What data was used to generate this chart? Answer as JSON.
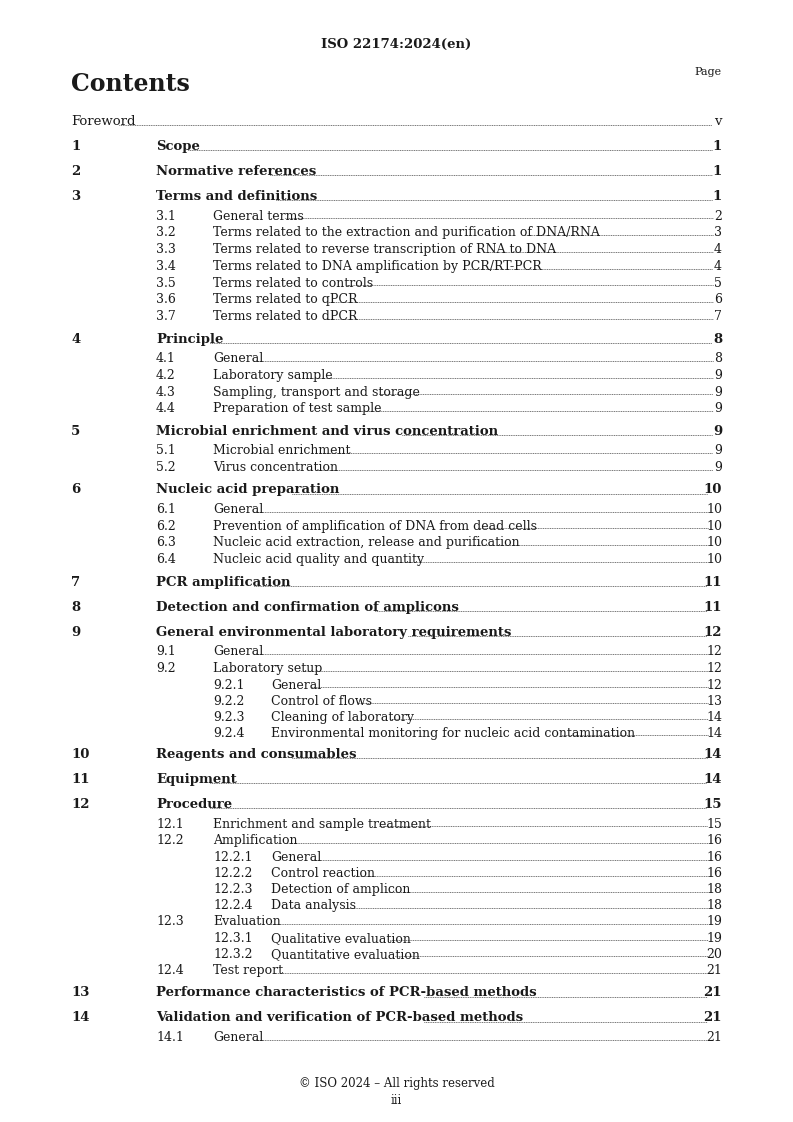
{
  "header": "ISO 22174:2024(en)",
  "title": "Contents",
  "page_label": "Page",
  "footer_line1": "© ISO 2024 – All rights reserved",
  "footer_line2": "iii",
  "background": "#ffffff",
  "text_color": "#1a1a1a",
  "entries": [
    {
      "level": 0,
      "num": "Foreword",
      "text": "",
      "page": "v",
      "bold": false
    },
    {
      "level": 1,
      "num": "1",
      "text": "Scope",
      "page": "1",
      "bold": true
    },
    {
      "level": 1,
      "num": "2",
      "text": "Normative references",
      "page": "1",
      "bold": true
    },
    {
      "level": 1,
      "num": "3",
      "text": "Terms and definitions",
      "page": "1",
      "bold": true
    },
    {
      "level": 2,
      "num": "3.1",
      "text": "General terms",
      "page": "2",
      "bold": false
    },
    {
      "level": 2,
      "num": "3.2",
      "text": "Terms related to the extraction and purification of DNA/RNA",
      "page": "3",
      "bold": false
    },
    {
      "level": 2,
      "num": "3.3",
      "text": "Terms related to reverse transcription of RNA to DNA",
      "page": "4",
      "bold": false
    },
    {
      "level": 2,
      "num": "3.4",
      "text": "Terms related to DNA amplification by PCR/RT-PCR",
      "page": "4",
      "bold": false
    },
    {
      "level": 2,
      "num": "3.5",
      "text": "Terms related to controls",
      "page": "5",
      "bold": false
    },
    {
      "level": 2,
      "num": "3.6",
      "text": "Terms related to qPCR",
      "page": "6",
      "bold": false
    },
    {
      "level": 2,
      "num": "3.7",
      "text": "Terms related to dPCR",
      "page": "7",
      "bold": false
    },
    {
      "level": 1,
      "num": "4",
      "text": "Principle",
      "page": "8",
      "bold": true
    },
    {
      "level": 2,
      "num": "4.1",
      "text": "General",
      "page": "8",
      "bold": false
    },
    {
      "level": 2,
      "num": "4.2",
      "text": "Laboratory sample",
      "page": "9",
      "bold": false
    },
    {
      "level": 2,
      "num": "4.3",
      "text": "Sampling, transport and storage",
      "page": "9",
      "bold": false
    },
    {
      "level": 2,
      "num": "4.4",
      "text": "Preparation of test sample",
      "page": "9",
      "bold": false
    },
    {
      "level": 1,
      "num": "5",
      "text": "Microbial enrichment and virus concentration",
      "page": "9",
      "bold": true
    },
    {
      "level": 2,
      "num": "5.1",
      "text": "Microbial enrichment",
      "page": "9",
      "bold": false
    },
    {
      "level": 2,
      "num": "5.2",
      "text": "Virus concentration",
      "page": "9",
      "bold": false
    },
    {
      "level": 1,
      "num": "6",
      "text": "Nucleic acid preparation",
      "page": "10",
      "bold": true
    },
    {
      "level": 2,
      "num": "6.1",
      "text": "General",
      "page": "10",
      "bold": false
    },
    {
      "level": 2,
      "num": "6.2",
      "text": "Prevention of amplification of DNA from dead cells",
      "page": "10",
      "bold": false
    },
    {
      "level": 2,
      "num": "6.3",
      "text": "Nucleic acid extraction, release and purification",
      "page": "10",
      "bold": false
    },
    {
      "level": 2,
      "num": "6.4",
      "text": "Nucleic acid quality and quantity",
      "page": "10",
      "bold": false
    },
    {
      "level": 1,
      "num": "7",
      "text": "PCR amplification",
      "page": "11",
      "bold": true
    },
    {
      "level": 1,
      "num": "8",
      "text": "Detection and confirmation of amplicons",
      "page": "11",
      "bold": true
    },
    {
      "level": 1,
      "num": "9",
      "text": "General environmental laboratory requirements",
      "page": "12",
      "bold": true
    },
    {
      "level": 2,
      "num": "9.1",
      "text": "General",
      "page": "12",
      "bold": false
    },
    {
      "level": 2,
      "num": "9.2",
      "text": "Laboratory setup",
      "page": "12",
      "bold": false
    },
    {
      "level": 3,
      "num": "9.2.1",
      "text": "General",
      "page": "12",
      "bold": false
    },
    {
      "level": 3,
      "num": "9.2.2",
      "text": "Control of flows",
      "page": "13",
      "bold": false
    },
    {
      "level": 3,
      "num": "9.2.3",
      "text": "Cleaning of laboratory",
      "page": "14",
      "bold": false
    },
    {
      "level": 3,
      "num": "9.2.4",
      "text": "Environmental monitoring for nucleic acid contamination",
      "page": "14",
      "bold": false
    },
    {
      "level": 1,
      "num": "10",
      "text": "Reagents and consumables",
      "page": "14",
      "bold": true
    },
    {
      "level": 1,
      "num": "11",
      "text": "Equipment",
      "page": "14",
      "bold": true
    },
    {
      "level": 1,
      "num": "12",
      "text": "Procedure",
      "page": "15",
      "bold": true
    },
    {
      "level": 2,
      "num": "12.1",
      "text": "Enrichment and sample treatment",
      "page": "15",
      "bold": false
    },
    {
      "level": 2,
      "num": "12.2",
      "text": "Amplification",
      "page": "16",
      "bold": false
    },
    {
      "level": 3,
      "num": "12.2.1",
      "text": "General",
      "page": "16",
      "bold": false
    },
    {
      "level": 3,
      "num": "12.2.2",
      "text": "Control reaction",
      "page": "16",
      "bold": false
    },
    {
      "level": 3,
      "num": "12.2.3",
      "text": "Detection of amplicon",
      "page": "18",
      "bold": false
    },
    {
      "level": 3,
      "num": "12.2.4",
      "text": "Data analysis",
      "page": "18",
      "bold": false
    },
    {
      "level": 2,
      "num": "12.3",
      "text": "Evaluation",
      "page": "19",
      "bold": false
    },
    {
      "level": 3,
      "num": "12.3.1",
      "text": "Qualitative evaluation",
      "page": "19",
      "bold": false
    },
    {
      "level": 3,
      "num": "12.3.2",
      "text": "Quantitative evaluation",
      "page": "20",
      "bold": false
    },
    {
      "level": 2,
      "num": "12.4",
      "text": "Test report",
      "page": "21",
      "bold": false
    },
    {
      "level": 1,
      "num": "13",
      "text": "Performance characteristics of PCR-based methods",
      "page": "21",
      "bold": true
    },
    {
      "level": 1,
      "num": "14",
      "text": "Validation and verification of PCR-based methods",
      "page": "21",
      "bold": true
    },
    {
      "level": 2,
      "num": "14.1",
      "text": "General",
      "page": "21",
      "bold": false
    }
  ]
}
